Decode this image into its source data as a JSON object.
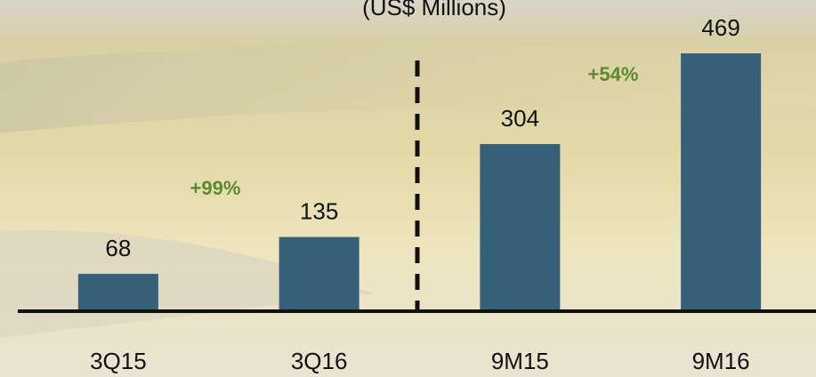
{
  "chart_data": {
    "type": "bar",
    "subtitle": "(US$ Millions)",
    "categories": [
      "3Q15",
      "3Q16",
      "9M15",
      "9M16"
    ],
    "values": [
      68,
      135,
      304,
      469
    ],
    "color": "#365f7a",
    "annotations": [
      {
        "text": "+99%",
        "color": "#5b8a2f"
      },
      {
        "text": "+54%",
        "color": "#5b8a2f"
      }
    ]
  }
}
